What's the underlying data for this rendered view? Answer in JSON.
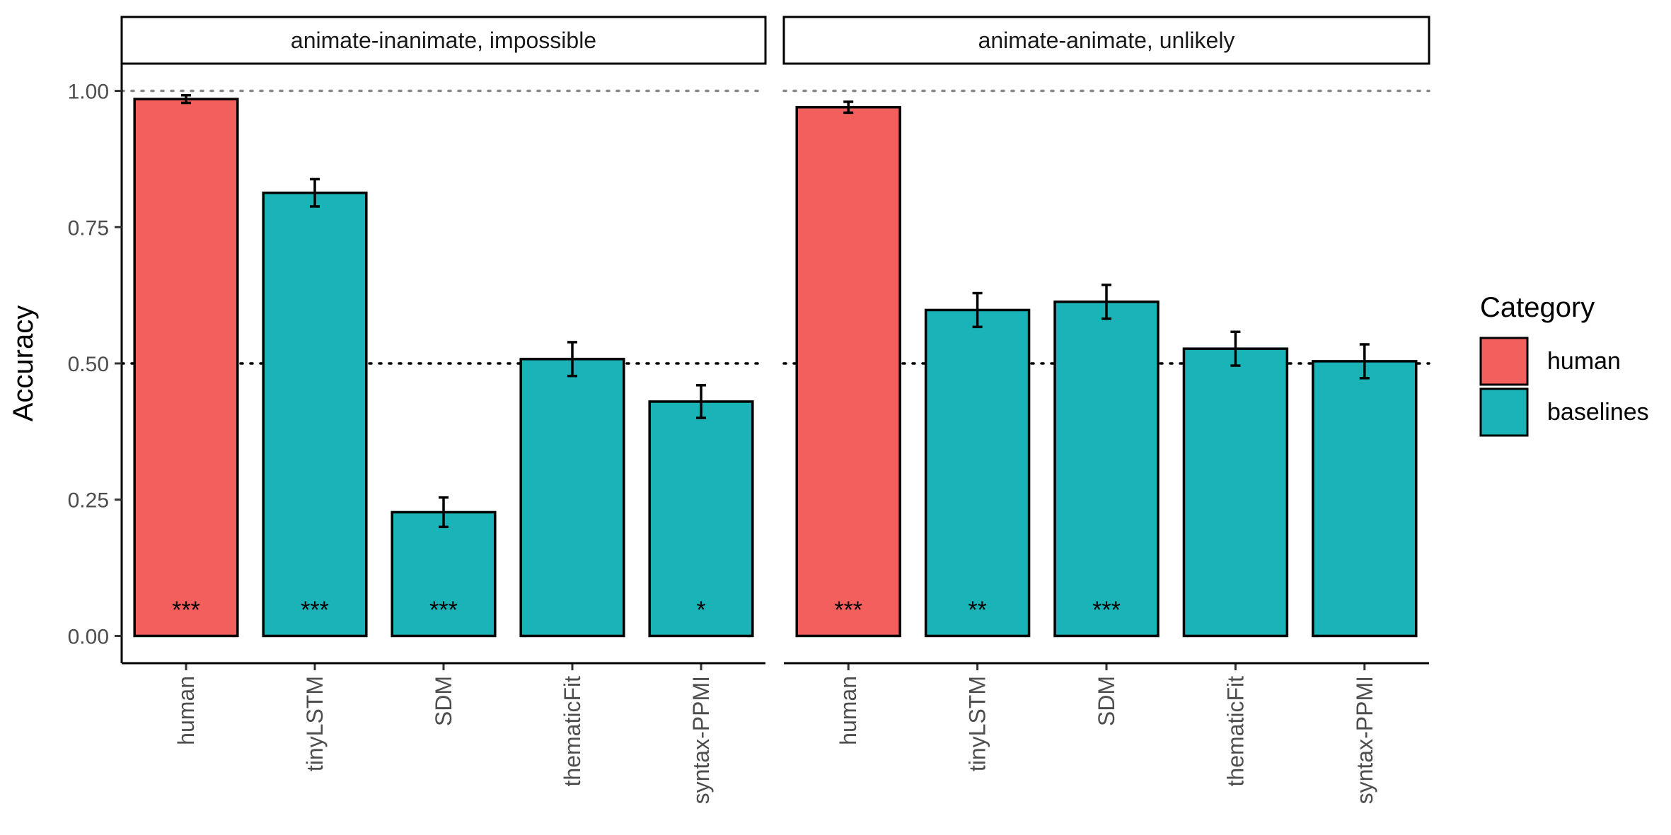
{
  "chart_data": {
    "type": "bar",
    "ylabel": "Accuracy",
    "ylim": [
      -0.05,
      1.05
    ],
    "yticks": [
      0,
      0.25,
      0.5,
      0.75,
      1.0
    ],
    "ytick_labels": [
      "0.00",
      "0.25",
      "0.50",
      "0.75",
      "1.00"
    ],
    "reference_lines": [
      0.5,
      1.0
    ],
    "categories": [
      "human",
      "tinyLSTM",
      "SDM",
      "thematicFit",
      "syntax-PPMI"
    ],
    "legend": {
      "title": "Category",
      "position": "right",
      "entries": [
        {
          "label": "human",
          "color": "#F25F5C"
        },
        {
          "label": "baselines",
          "color": "#19B3B8"
        }
      ]
    },
    "panels": [
      {
        "title": "animate-inanimate, impossible",
        "values": [
          0.985,
          0.813,
          0.227,
          0.508,
          0.43
        ],
        "err_low": [
          0.978,
          0.788,
          0.2,
          0.477,
          0.4
        ],
        "err_high": [
          0.992,
          0.838,
          0.254,
          0.539,
          0.46
        ],
        "groups": [
          "human",
          "baselines",
          "baselines",
          "baselines",
          "baselines"
        ],
        "significance": [
          "***",
          "***",
          "***",
          "",
          "*"
        ]
      },
      {
        "title": "animate-animate, unlikely",
        "values": [
          0.97,
          0.598,
          0.613,
          0.527,
          0.504
        ],
        "err_low": [
          0.96,
          0.567,
          0.582,
          0.496,
          0.473
        ],
        "err_high": [
          0.98,
          0.629,
          0.644,
          0.558,
          0.535
        ],
        "groups": [
          "human",
          "baselines",
          "baselines",
          "baselines",
          "baselines"
        ],
        "significance": [
          "***",
          "**",
          "***",
          "",
          ""
        ]
      }
    ]
  }
}
